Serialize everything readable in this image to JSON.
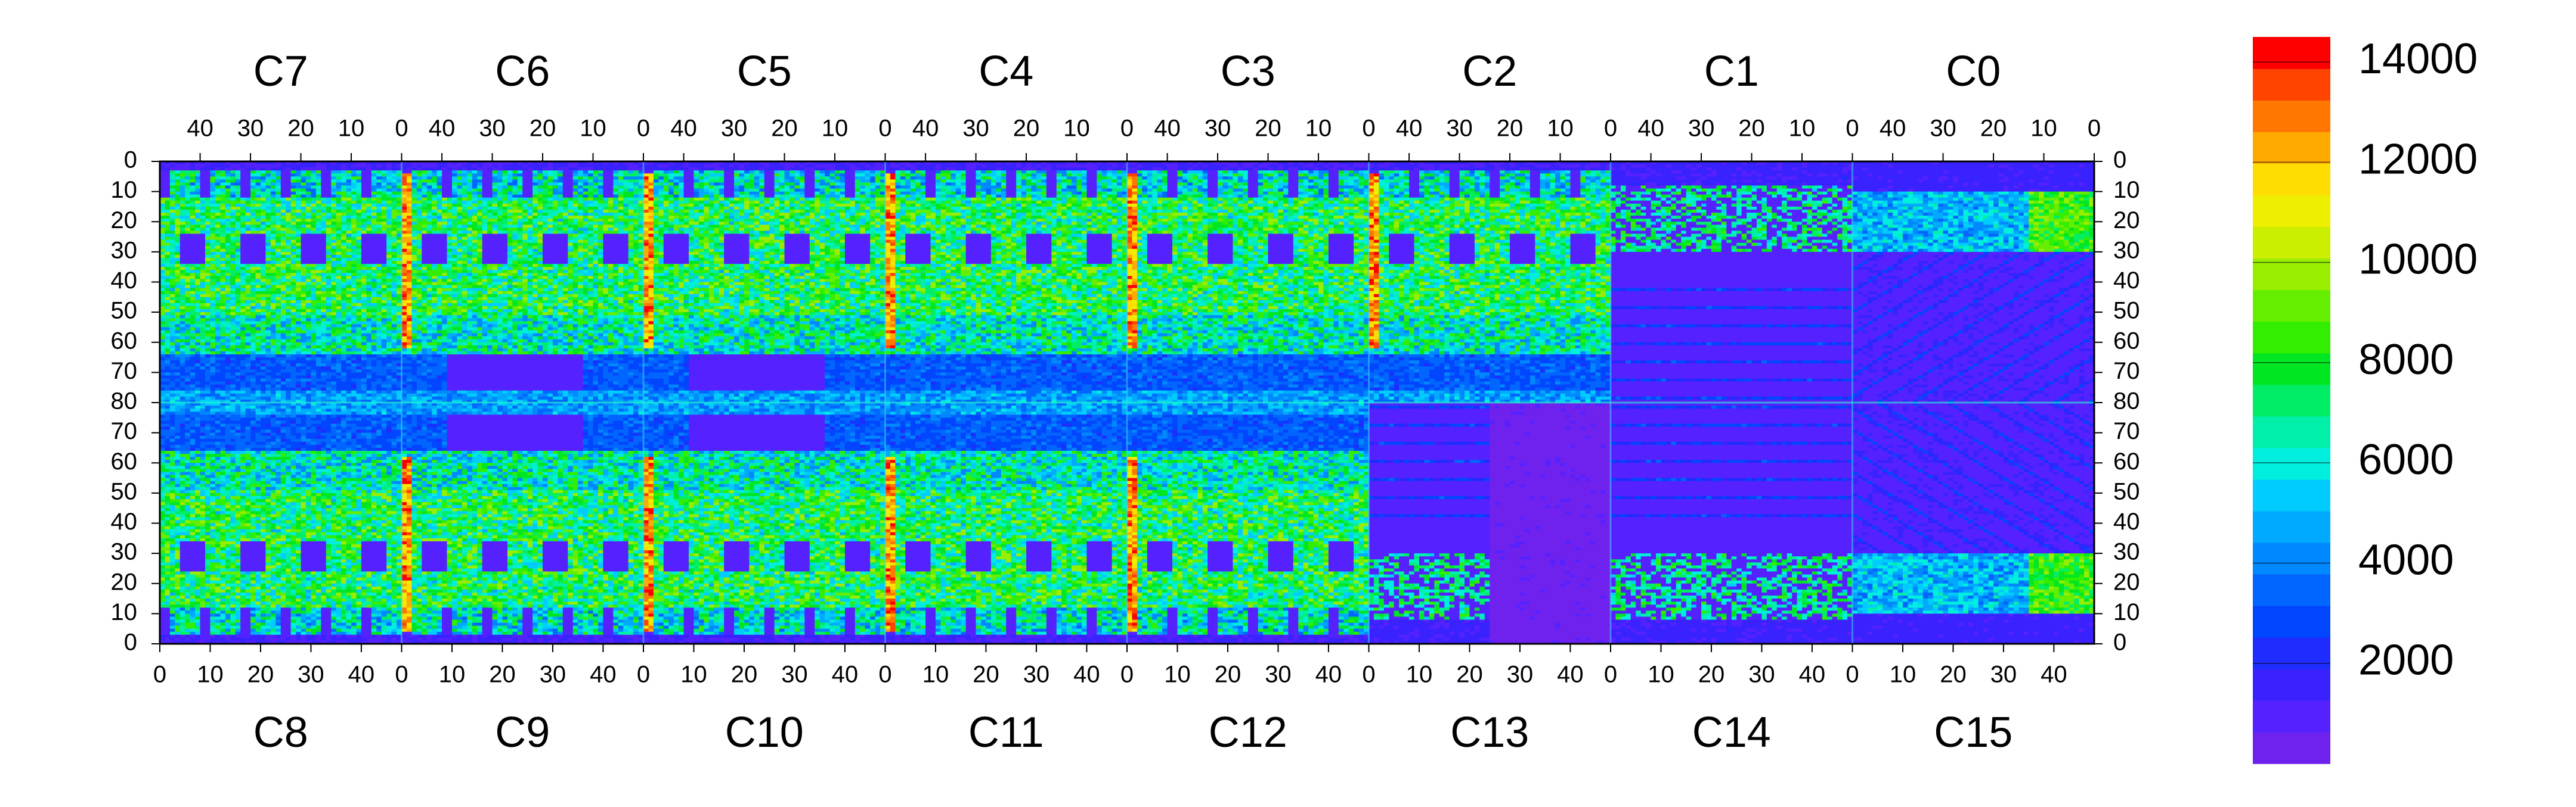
{
  "chart_data": {
    "type": "heatmap",
    "title": "",
    "top_chips": [
      "C7",
      "C6",
      "C5",
      "C4",
      "C3",
      "C2",
      "C1",
      "C0"
    ],
    "bottom_chips": [
      "C8",
      "C9",
      "C10",
      "C11",
      "C12",
      "C13",
      "C14",
      "C15"
    ],
    "top_x_ticks": [
      "40",
      "30",
      "20",
      "10",
      "0"
    ],
    "bottom_x_ticks": [
      "0",
      "10",
      "20",
      "30",
      "40"
    ],
    "y_ticks": [
      "0",
      "10",
      "20",
      "30",
      "40",
      "50",
      "60",
      "70",
      "80",
      "70",
      "60",
      "50",
      "40",
      "30",
      "20",
      "10",
      "0"
    ],
    "colorbar": {
      "min": 0,
      "max": 14500,
      "tick_labels": [
        "14000",
        "12000",
        "10000",
        "8000",
        "6000",
        "4000",
        "2000"
      ],
      "tick_values": [
        14000,
        12000,
        10000,
        8000,
        6000,
        4000,
        2000
      ],
      "colors": [
        "#6f22ee",
        "#5522ff",
        "#3a22ff",
        "#1f2cff",
        "#0046ff",
        "#0066ff",
        "#0088ff",
        "#00aaff",
        "#00ccff",
        "#00eedd",
        "#00f0aa",
        "#00ee66",
        "#00e622",
        "#33ee00",
        "#66ee00",
        "#99ee00",
        "#ccee00",
        "#eeee00",
        "#ffdd00",
        "#ffaa00",
        "#ff7700",
        "#ff4400",
        "#ff0000"
      ]
    },
    "grid": false,
    "legend": "colorbar-right"
  }
}
